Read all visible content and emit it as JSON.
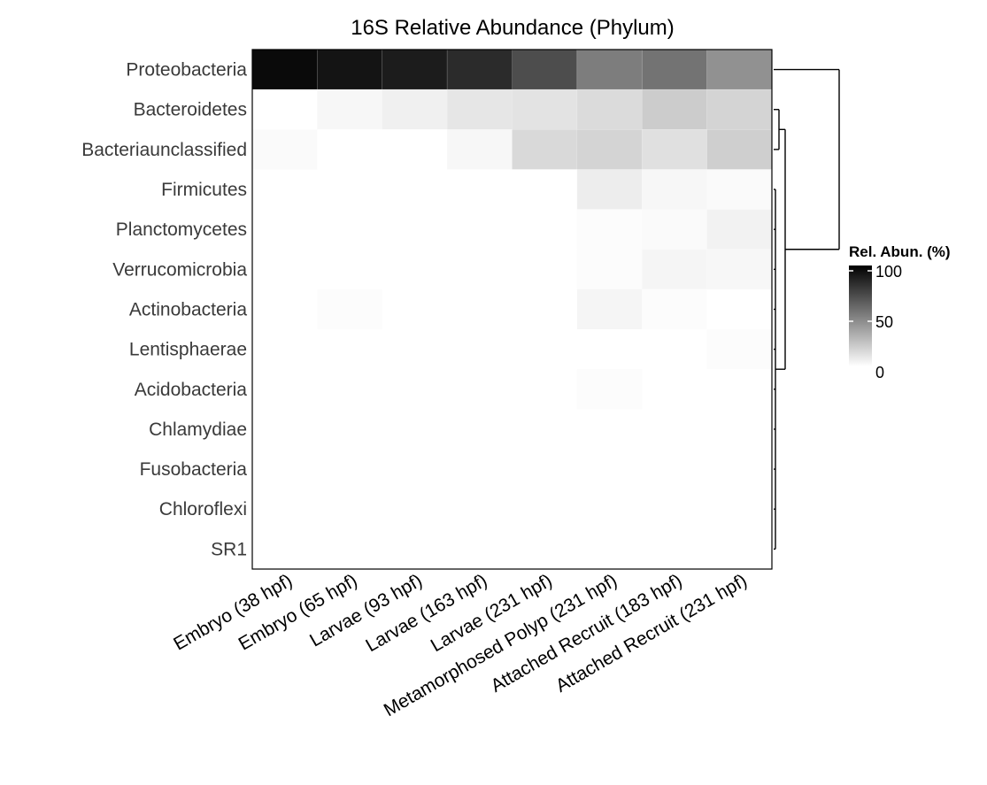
{
  "chart_data": {
    "type": "heatmap",
    "title": "16S Relative Abundance (Phylum)",
    "xlabel": "",
    "ylabel": "",
    "columns": [
      "Embryo (38 hpf)",
      "Embryo (65 hpf)",
      "Larvae (93 hpf)",
      "Larvae (163 hpf)",
      "Larvae (231 hpf)",
      "Metamorphosed Polyp (231 hpf)",
      "Attached Recruit (183 hpf)",
      "Attached Recruit (231 hpf)"
    ],
    "rows": [
      "Proteobacteria",
      "Bacteroidetes",
      "Bacteriaunclassified",
      "Firmicutes",
      "Planctomycetes",
      "Verrucomicrobia",
      "Actinobacteria",
      "Lentisphaerae",
      "Acidobacteria",
      "Chlamydiae",
      "Fusobacteria",
      "Chloroflexi",
      "SR1"
    ],
    "values": [
      [
        96,
        92,
        89,
        83,
        70,
        51,
        55,
        43
      ],
      [
        0,
        3,
        6,
        10,
        11,
        14,
        20,
        17
      ],
      [
        2,
        0,
        0,
        3,
        15,
        17,
        12,
        19
      ],
      [
        0,
        0,
        0,
        0,
        0,
        7,
        3,
        2
      ],
      [
        0,
        0,
        0,
        0,
        0,
        1,
        2,
        5
      ],
      [
        0,
        0,
        0,
        0,
        0,
        1,
        4,
        3
      ],
      [
        0,
        1,
        0,
        0,
        0,
        4,
        1,
        0
      ],
      [
        0,
        0,
        0,
        0,
        0,
        0,
        0,
        1
      ],
      [
        0,
        0,
        0,
        0,
        0,
        1,
        0,
        0
      ],
      [
        0,
        0,
        0,
        0,
        0,
        0,
        0,
        0
      ],
      [
        0,
        0,
        0,
        0,
        0,
        0,
        0,
        0
      ],
      [
        0,
        0,
        0,
        0,
        0,
        0,
        0,
        0
      ],
      [
        0,
        0,
        0,
        0,
        0,
        0,
        0,
        0
      ]
    ],
    "color_scale": {
      "min": 0,
      "max": 100,
      "low_color": "#ffffff",
      "high_color": "#000000"
    },
    "legend": {
      "title": "Rel. Abun. (%)",
      "ticks": [
        100,
        50,
        0
      ],
      "position": "right"
    },
    "row_dendrogram": true,
    "grid": false
  }
}
